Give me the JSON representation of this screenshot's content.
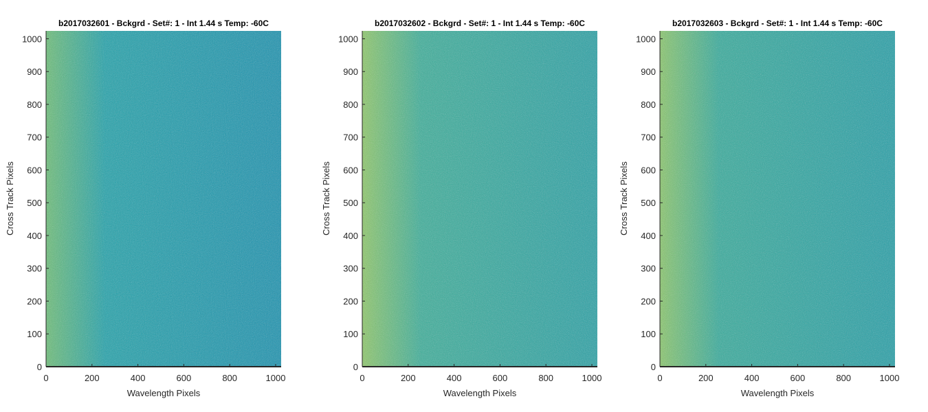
{
  "chart_data": [
    {
      "type": "heatmap",
      "title": "b2017032601 - Bckgrd - Set#: 1 - Int 1.44 s Temp: -60C",
      "xlabel": "Wavelength Pixels",
      "ylabel": "Cross Track Pixels",
      "xlim": [
        0,
        1024
      ],
      "ylim": [
        0,
        1024
      ],
      "xticks": [
        0,
        200,
        400,
        600,
        800,
        1000
      ],
      "yticks": [
        0,
        100,
        200,
        300,
        400,
        500,
        600,
        700,
        800,
        900,
        1000
      ],
      "colors": {
        "base": "#22a3ab",
        "low": "#1b93b0",
        "high": "#8ccf6a",
        "edge": "#6cbf78"
      }
    },
    {
      "type": "heatmap",
      "title": "b2017032602 - Bckgrd - Set#: 1 - Int 1.44 s Temp: -60C",
      "xlabel": "Wavelength Pixels",
      "ylabel": "Cross Track Pixels",
      "xlim": [
        0,
        1024
      ],
      "ylim": [
        0,
        1024
      ],
      "xticks": [
        0,
        200,
        400,
        600,
        800,
        1000
      ],
      "yticks": [
        0,
        100,
        200,
        300,
        400,
        500,
        600,
        700,
        800,
        900,
        1000
      ],
      "colors": {
        "base": "#3caf9a",
        "low": "#2aa2a6",
        "high": "#a9d35b",
        "edge": "#8ec96a"
      }
    },
    {
      "type": "heatmap",
      "title": "b2017032603 - Bckgrd - Set#: 1 - Int 1.44 s Temp: -60C",
      "xlabel": "Wavelength Pixels",
      "ylabel": "Cross Track Pixels",
      "xlim": [
        0,
        1024
      ],
      "ylim": [
        0,
        1024
      ],
      "xticks": [
        0,
        200,
        400,
        600,
        800,
        1000
      ],
      "yticks": [
        0,
        100,
        200,
        300,
        400,
        500,
        600,
        700,
        800,
        900,
        1000
      ],
      "colors": {
        "base": "#36ac9c",
        "low": "#26a0a8",
        "high": "#a3d15e",
        "edge": "#8ac86c"
      }
    }
  ]
}
